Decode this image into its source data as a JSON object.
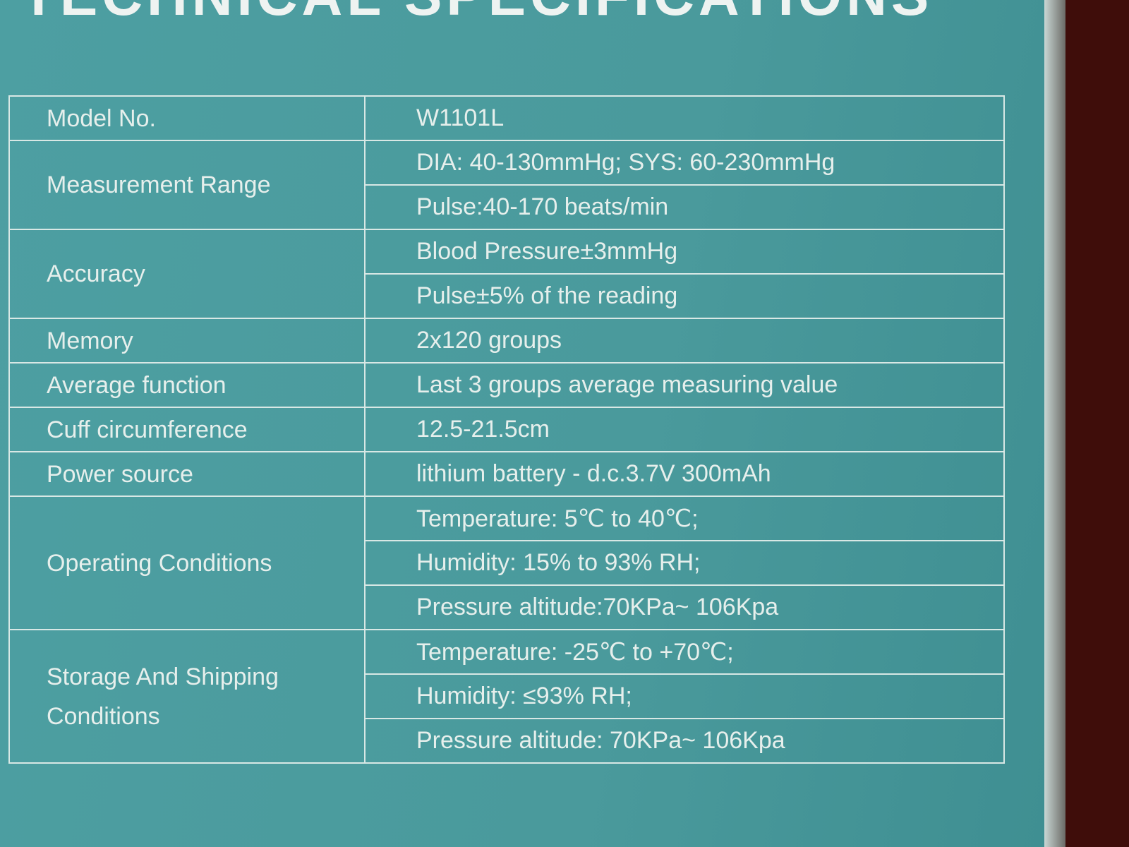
{
  "header": {
    "title": "TECHNICAL SPECIFICATIONS"
  },
  "table": {
    "rows": [
      {
        "label": "Model No.",
        "values": [
          "W1101L"
        ]
      },
      {
        "label": "Measurement Range",
        "values": [
          "DIA: 40-130mmHg; SYS: 60-230mmHg",
          "Pulse:40-170 beats/min"
        ]
      },
      {
        "label": "Accuracy",
        "values": [
          "Blood Pressure±3mmHg",
          "Pulse±5% of the reading"
        ]
      },
      {
        "label": "Memory",
        "values": [
          "2x120 groups"
        ]
      },
      {
        "label": "Average function",
        "values": [
          "Last 3 groups average measuring value"
        ]
      },
      {
        "label": "Cuff circumference",
        "values": [
          "12.5-21.5cm"
        ]
      },
      {
        "label": "Power source",
        "values": [
          "lithium battery - d.c.3.7V 300mAh"
        ]
      },
      {
        "label": "Operating Conditions",
        "values": [
          "Temperature: 5℃ to 40℃;",
          "Humidity: 15% to 93% RH;",
          "Pressure altitude:70KPa~ 106Kpa"
        ]
      },
      {
        "label": "Storage And Shipping Conditions",
        "values": [
          "Temperature: -25℃ to +70℃;",
          "Humidity: ≤93% RH;",
          "Pressure altitude: 70KPa~ 106Kpa"
        ]
      }
    ]
  }
}
